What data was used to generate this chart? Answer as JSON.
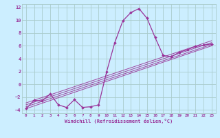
{
  "title": "",
  "xlabel": "Windchill (Refroidissement éolien,°C)",
  "bg_color": "#cceeff",
  "grid_color": "#aacccc",
  "line_color": "#993399",
  "spine_color": "#aacccc",
  "xlim": [
    -0.5,
    23.5
  ],
  "ylim": [
    -4.5,
    12.5
  ],
  "xticks": [
    0,
    1,
    2,
    3,
    4,
    5,
    6,
    7,
    8,
    9,
    10,
    11,
    12,
    13,
    14,
    15,
    16,
    17,
    18,
    19,
    20,
    21,
    22,
    23
  ],
  "yticks": [
    -4,
    -2,
    0,
    2,
    4,
    6,
    8,
    10,
    12
  ],
  "main_line_x": [
    0,
    1,
    2,
    3,
    4,
    5,
    6,
    7,
    8,
    9,
    10,
    11,
    12,
    13,
    14,
    15,
    16,
    17,
    18,
    19,
    20,
    21,
    22,
    23
  ],
  "main_line_y": [
    -3.8,
    -2.5,
    -2.6,
    -1.5,
    -3.2,
    -3.6,
    -2.4,
    -3.6,
    -3.5,
    -3.2,
    2.0,
    6.5,
    9.9,
    11.2,
    11.8,
    10.3,
    7.3,
    4.5,
    4.3,
    5.0,
    5.4,
    5.9,
    6.1,
    6.3
  ],
  "linear_lines": [
    {
      "x": [
        0,
        23
      ],
      "y": [
        -3.8,
        6.0
      ]
    },
    {
      "x": [
        0,
        23
      ],
      "y": [
        -3.5,
        6.2
      ]
    },
    {
      "x": [
        0,
        23
      ],
      "y": [
        -3.2,
        6.5
      ]
    },
    {
      "x": [
        0,
        23
      ],
      "y": [
        -2.9,
        6.8
      ]
    }
  ]
}
